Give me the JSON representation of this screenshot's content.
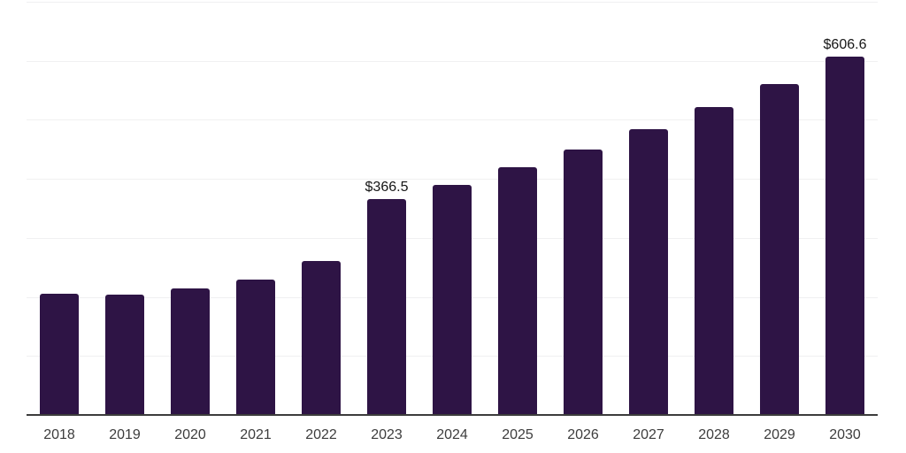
{
  "chart": {
    "background_color": "#ffffff",
    "bar_color": "#2e1445",
    "gridline_color": "#f0f0f1",
    "axis_line_color": "#3c3c3c",
    "tick_label_color": "#3d3d3d",
    "value_label_color": "#161616"
  },
  "chart_data": {
    "type": "bar",
    "title": "",
    "xlabel": "",
    "ylabel": "",
    "categories": [
      "2018",
      "2019",
      "2020",
      "2021",
      "2022",
      "2023",
      "2024",
      "2025",
      "2026",
      "2027",
      "2028",
      "2029",
      "2030"
    ],
    "values": [
      205,
      204,
      215,
      229,
      261,
      366.5,
      390,
      419,
      449,
      484,
      521,
      561,
      606.6
    ],
    "point_labels": [
      "",
      "",
      "",
      "",
      "",
      "$366.5",
      "",
      "",
      "",
      "",
      "",
      "",
      "$606.6"
    ],
    "ylim": [
      0,
      700
    ],
    "grid_step": 100,
    "grid": "horizontal",
    "y_axis_tick_labels": "hidden",
    "legend_position": "none"
  }
}
